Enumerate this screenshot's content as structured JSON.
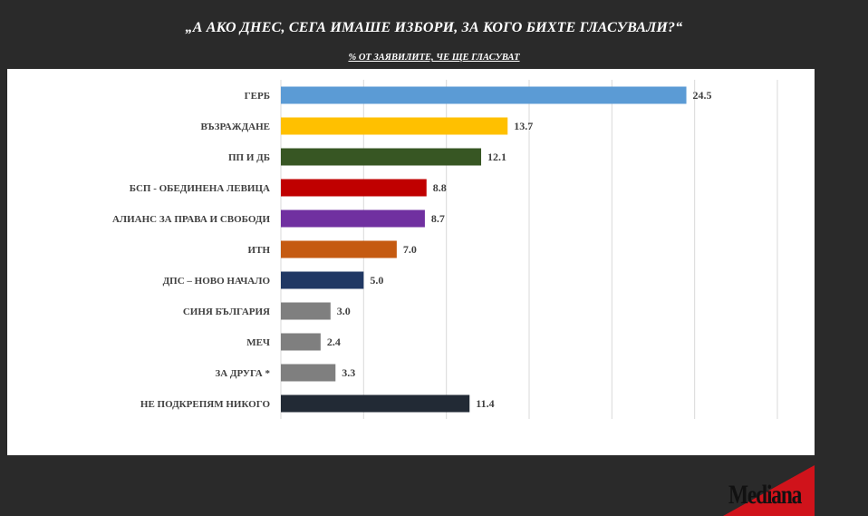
{
  "header": {
    "title": "„А АКО ДНЕС, СЕГА ИМАШЕ ИЗБОРИ, ЗА КОГО БИХТЕ ГЛАСУВАЛИ?“",
    "subtitle": "% ОТ ЗАЯВИЛИТЕ, ЧЕ ЩЕ ГЛАСУВАТ"
  },
  "logo": {
    "text": "Mediana",
    "accent_color": "#d0131b"
  },
  "chart_data": {
    "type": "bar",
    "orientation": "horizontal",
    "title": "„А АКО ДНЕС, СЕГА ИМАШЕ ИЗБОРИ, ЗА КОГО БИХТЕ ГЛАСУВАЛИ?“",
    "subtitle": "% ОТ ЗАЯВИЛИТЕ, ЧЕ ЩЕ ГЛАСУВАТ",
    "xlim": [
      0,
      30
    ],
    "grid": "vertical",
    "categories": [
      "ГЕРБ",
      "ВЪЗРАЖДАНЕ",
      "ПП И ДБ",
      "БСП - ОБЕДИНЕНА ЛЕВИЦА",
      "АЛИАНС ЗА ПРАВА И СВОБОДИ",
      "ИТН",
      "ДПС – НОВО НАЧАЛО",
      "СИНЯ БЪЛГАРИЯ",
      "МЕЧ",
      "ЗА ДРУГА *",
      "НЕ ПОДКРЕПЯМ НИКОГО"
    ],
    "values": [
      24.5,
      13.7,
      12.1,
      8.8,
      8.7,
      7.0,
      5.0,
      3.0,
      2.4,
      3.3,
      11.4
    ],
    "value_labels": [
      "24.5",
      "13.7",
      "12.1",
      "8.8",
      "8.7",
      "7.0",
      "5.0",
      "3.0",
      "2.4",
      "3.3",
      "11.4"
    ],
    "colors": [
      "#5b9bd5",
      "#ffc000",
      "#375623",
      "#c00000",
      "#7030a0",
      "#c55a11",
      "#203864",
      "#7f7f7f",
      "#7f7f7f",
      "#7f7f7f",
      "#222a35"
    ]
  }
}
